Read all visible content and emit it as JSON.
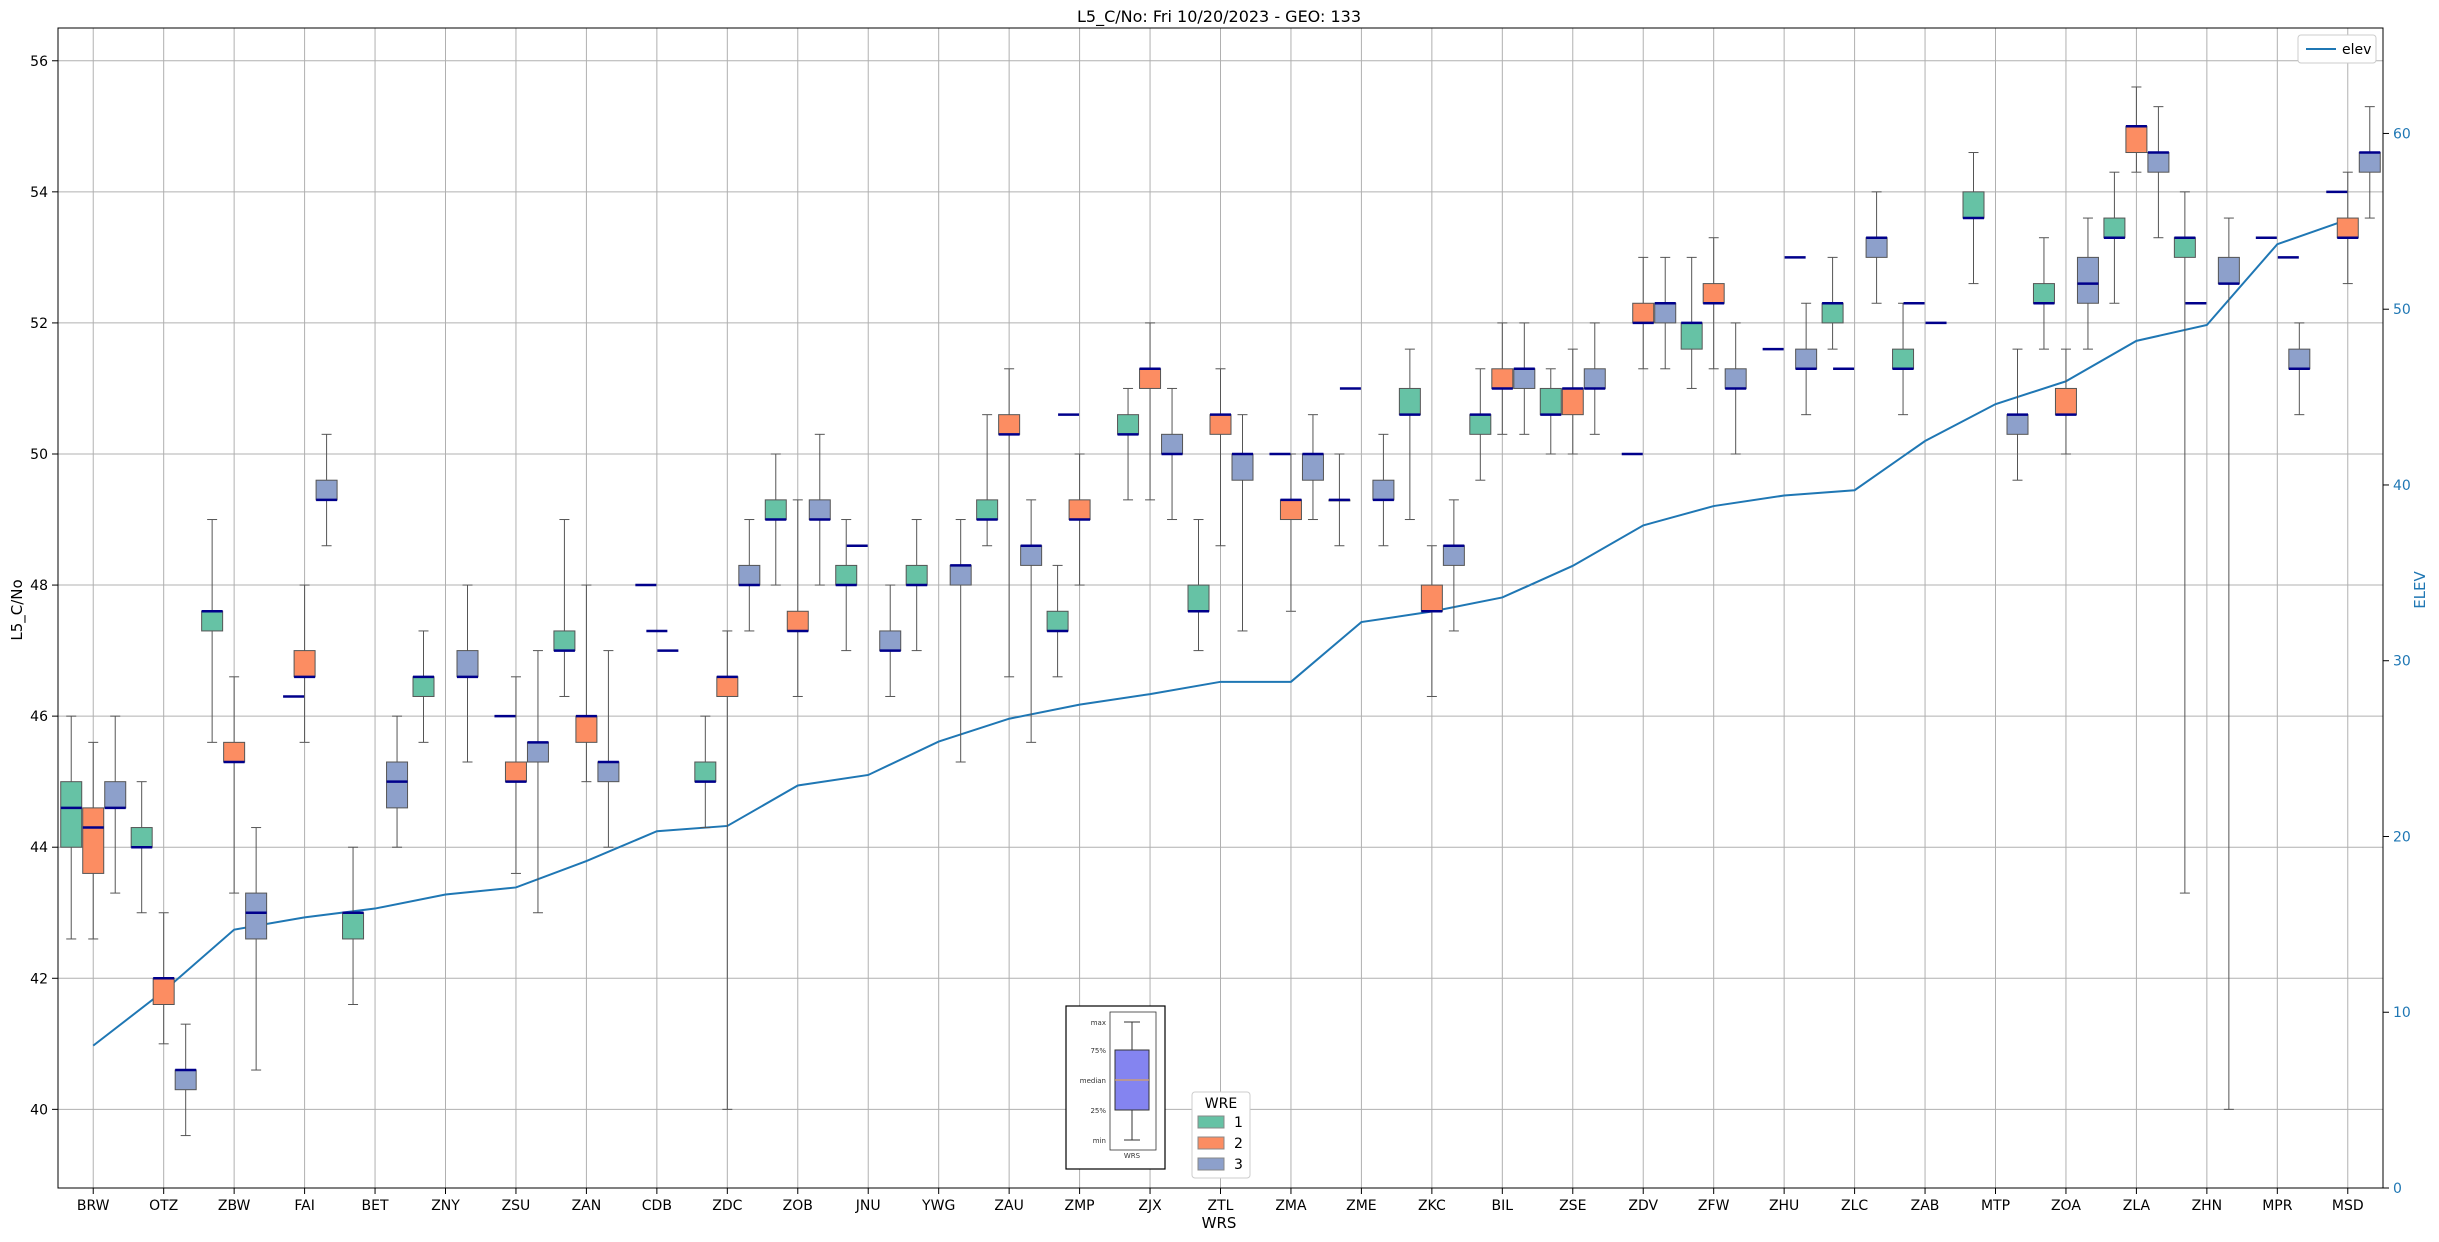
{
  "chart_data": {
    "type": "box",
    "title": "L5_C/No: Fri 10/20/2023 - GEO: 133",
    "xlabel": "WRS",
    "ylabel": "L5_C/No",
    "y2label": "ELEV",
    "ylim": [
      38.8,
      56.5
    ],
    "y2lim": [
      0,
      66
    ],
    "yticks": [
      40,
      42,
      44,
      46,
      48,
      50,
      52,
      54,
      56
    ],
    "y2ticks": [
      0,
      10,
      20,
      30,
      40,
      50,
      60
    ],
    "grid": true,
    "categories": [
      "BRW",
      "OTZ",
      "ZBW",
      "FAI",
      "BET",
      "ZNY",
      "ZSU",
      "ZAN",
      "CDB",
      "ZDC",
      "ZOB",
      "JNU",
      "YWG",
      "ZAU",
      "ZMP",
      "ZJX",
      "ZTL",
      "ZMA",
      "ZME",
      "ZKC",
      "BIL",
      "ZSE",
      "ZDV",
      "ZFW",
      "ZHU",
      "ZLC",
      "ZAB",
      "MTP",
      "ZOA",
      "ZLA",
      "ZHN",
      "MPR",
      "MSD"
    ],
    "colors": {
      "1": "#66c2a5",
      "2": "#fc8d62",
      "3": "#8da0cb",
      "median": "#00008b",
      "elev": "#1f77b4"
    },
    "series": [
      {
        "name": "1",
        "boxes": [
          {
            "i": 0,
            "min": 42.6,
            "q1": 44.0,
            "med": 44.6,
            "q3": 45.0,
            "max": 46.0
          },
          {
            "i": 1,
            "min": 43.0,
            "q1": 44.0,
            "med": 44.0,
            "q3": 44.3,
            "max": 45.0
          },
          {
            "i": 2,
            "min": 45.6,
            "q1": 47.3,
            "med": 47.6,
            "q3": 47.6,
            "max": 49.0
          },
          {
            "i": 4,
            "min": 41.6,
            "q1": 42.6,
            "med": 43.0,
            "q3": 43.0,
            "max": 44.0
          },
          {
            "i": 5,
            "min": 45.6,
            "q1": 46.3,
            "med": 46.6,
            "q3": 46.6,
            "max": 47.3
          },
          {
            "i": 7,
            "min": 46.3,
            "q1": 47.0,
            "med": 47.0,
            "q3": 47.3,
            "max": 49.0
          },
          {
            "i": 9,
            "min": 44.3,
            "q1": 45.0,
            "med": 45.0,
            "q3": 45.3,
            "max": 46.0
          },
          {
            "i": 10,
            "min": 48.0,
            "q1": 49.0,
            "med": 49.0,
            "q3": 49.3,
            "max": 50.0
          },
          {
            "i": 11,
            "min": 47.0,
            "q1": 48.0,
            "med": 48.0,
            "q3": 48.3,
            "max": 49.0
          },
          {
            "i": 12,
            "min": 47.0,
            "q1": 48.0,
            "med": 48.0,
            "q3": 48.3,
            "max": 49.0
          },
          {
            "i": 13,
            "min": 48.6,
            "q1": 49.0,
            "med": 49.0,
            "q3": 49.3,
            "max": 50.6
          },
          {
            "i": 14,
            "min": 46.6,
            "q1": 47.3,
            "med": 47.3,
            "q3": 47.6,
            "max": 48.3
          },
          {
            "i": 15,
            "min": 49.3,
            "q1": 50.3,
            "med": 50.3,
            "q3": 50.6,
            "max": 51.0
          },
          {
            "i": 16,
            "min": 47.0,
            "q1": 47.6,
            "med": 47.6,
            "q3": 48.0,
            "max": 49.0
          },
          {
            "i": 18,
            "min": 48.6,
            "q1": 49.3,
            "med": 49.3,
            "q3": 49.3,
            "max": 50.0
          },
          {
            "i": 19,
            "min": 49.0,
            "q1": 50.6,
            "med": 50.6,
            "q3": 51.0,
            "max": 51.6
          },
          {
            "i": 20,
            "min": 49.6,
            "q1": 50.3,
            "med": 50.6,
            "q3": 50.6,
            "max": 51.3
          },
          {
            "i": 21,
            "min": 50.0,
            "q1": 50.6,
            "med": 50.6,
            "q3": 51.0,
            "max": 51.3
          },
          {
            "i": 23,
            "min": 51.0,
            "q1": 51.6,
            "med": 52.0,
            "q3": 52.0,
            "max": 53.0
          },
          {
            "i": 25,
            "min": 51.6,
            "q1": 52.0,
            "med": 52.3,
            "q3": 52.3,
            "max": 53.0
          },
          {
            "i": 26,
            "min": 50.6,
            "q1": 51.3,
            "med": 51.3,
            "q3": 51.6,
            "max": 52.3
          },
          {
            "i": 27,
            "min": 52.6,
            "q1": 53.6,
            "med": 53.6,
            "q3": 54.0,
            "max": 54.6
          },
          {
            "i": 28,
            "min": 51.6,
            "q1": 52.3,
            "med": 52.3,
            "q3": 52.6,
            "max": 53.3
          },
          {
            "i": 29,
            "min": 52.3,
            "q1": 53.3,
            "med": 53.3,
            "q3": 53.6,
            "max": 54.3
          },
          {
            "i": 30,
            "min": 43.3,
            "q1": 53.0,
            "med": 53.3,
            "q3": 53.3,
            "max": 54.0
          }
        ]
      },
      {
        "name": "2",
        "boxes": [
          {
            "i": 0,
            "min": 42.6,
            "q1": 43.6,
            "med": 44.3,
            "q3": 44.6,
            "max": 45.6
          },
          {
            "i": 1,
            "min": 41.0,
            "q1": 41.6,
            "med": 42.0,
            "q3": 42.0,
            "max": 43.0
          },
          {
            "i": 2,
            "min": 43.3,
            "q1": 45.3,
            "med": 45.3,
            "q3": 45.6,
            "max": 46.6
          },
          {
            "i": 3,
            "min": 45.6,
            "q1": 46.6,
            "med": 46.6,
            "q3": 47.0,
            "max": 48.0
          },
          {
            "i": 6,
            "min": 43.6,
            "q1": 45.0,
            "med": 45.0,
            "q3": 45.3,
            "max": 46.6
          },
          {
            "i": 7,
            "min": 45.0,
            "q1": 45.6,
            "med": 46.0,
            "q3": 46.0,
            "max": 48.0
          },
          {
            "i": 9,
            "min": 40.0,
            "q1": 46.3,
            "med": 46.6,
            "q3": 46.6,
            "max": 47.3
          },
          {
            "i": 10,
            "min": 46.3,
            "q1": 47.3,
            "med": 47.3,
            "q3": 47.6,
            "max": 49.3
          },
          {
            "i": 13,
            "min": 46.6,
            "q1": 50.3,
            "med": 50.3,
            "q3": 50.6,
            "max": 51.3
          },
          {
            "i": 14,
            "min": 48.0,
            "q1": 49.0,
            "med": 49.0,
            "q3": 49.3,
            "max": 50.0
          },
          {
            "i": 15,
            "min": 49.3,
            "q1": 51.0,
            "med": 51.3,
            "q3": 51.3,
            "max": 52.0
          },
          {
            "i": 16,
            "min": 48.6,
            "q1": 50.3,
            "med": 50.6,
            "q3": 50.6,
            "max": 51.3
          },
          {
            "i": 17,
            "min": 47.6,
            "q1": 49.0,
            "med": 49.3,
            "q3": 49.3,
            "max": 50.0
          },
          {
            "i": 19,
            "min": 46.3,
            "q1": 47.6,
            "med": 47.6,
            "q3": 48.0,
            "max": 48.6
          },
          {
            "i": 20,
            "min": 50.3,
            "q1": 51.0,
            "med": 51.0,
            "q3": 51.3,
            "max": 52.0
          },
          {
            "i": 21,
            "min": 50.0,
            "q1": 50.6,
            "med": 51.0,
            "q3": 51.0,
            "max": 51.6
          },
          {
            "i": 22,
            "min": 51.3,
            "q1": 52.0,
            "med": 52.0,
            "q3": 52.3,
            "max": 53.0
          },
          {
            "i": 23,
            "min": 51.3,
            "q1": 52.3,
            "med": 52.3,
            "q3": 52.6,
            "max": 53.3
          },
          {
            "i": 28,
            "min": 50.0,
            "q1": 50.6,
            "med": 50.6,
            "q3": 51.0,
            "max": 51.6
          },
          {
            "i": 29,
            "min": 54.3,
            "q1": 54.6,
            "med": 55.0,
            "q3": 55.0,
            "max": 55.6
          },
          {
            "i": 32,
            "min": 52.6,
            "q1": 53.3,
            "med": 53.3,
            "q3": 53.6,
            "max": 54.3
          }
        ]
      },
      {
        "name": "3",
        "boxes": [
          {
            "i": 0,
            "min": 43.3,
            "q1": 44.6,
            "med": 44.6,
            "q3": 45.0,
            "max": 46.0
          },
          {
            "i": 1,
            "min": 39.6,
            "q1": 40.3,
            "med": 40.6,
            "q3": 40.6,
            "max": 41.3
          },
          {
            "i": 2,
            "min": 40.6,
            "q1": 42.6,
            "med": 43.0,
            "q3": 43.3,
            "max": 44.3
          },
          {
            "i": 3,
            "min": 48.6,
            "q1": 49.3,
            "med": 49.3,
            "q3": 49.6,
            "max": 50.3
          },
          {
            "i": 4,
            "min": 44.0,
            "q1": 44.6,
            "med": 45.0,
            "q3": 45.3,
            "max": 46.0
          },
          {
            "i": 5,
            "min": 45.3,
            "q1": 46.6,
            "med": 46.6,
            "q3": 47.0,
            "max": 48.0
          },
          {
            "i": 6,
            "min": 43.0,
            "q1": 45.3,
            "med": 45.6,
            "q3": 45.6,
            "max": 47.0
          },
          {
            "i": 7,
            "min": 44.0,
            "q1": 45.0,
            "med": 45.3,
            "q3": 45.3,
            "max": 47.0
          },
          {
            "i": 9,
            "min": 47.3,
            "q1": 48.0,
            "med": 48.0,
            "q3": 48.3,
            "max": 49.0
          },
          {
            "i": 10,
            "min": 48.0,
            "q1": 49.0,
            "med": 49.0,
            "q3": 49.3,
            "max": 50.3
          },
          {
            "i": 11,
            "min": 46.3,
            "q1": 47.0,
            "med": 47.0,
            "q3": 47.3,
            "max": 48.0
          },
          {
            "i": 12,
            "min": 45.3,
            "q1": 48.0,
            "med": 48.3,
            "q3": 48.3,
            "max": 49.0
          },
          {
            "i": 13,
            "min": 45.6,
            "q1": 48.3,
            "med": 48.6,
            "q3": 48.6,
            "max": 49.3
          },
          {
            "i": 15,
            "min": 49.0,
            "q1": 50.0,
            "med": 50.0,
            "q3": 50.3,
            "max": 51.0
          },
          {
            "i": 16,
            "min": 47.3,
            "q1": 49.6,
            "med": 50.0,
            "q3": 50.0,
            "max": 50.6
          },
          {
            "i": 17,
            "min": 49.0,
            "q1": 49.6,
            "med": 50.0,
            "q3": 50.0,
            "max": 50.6
          },
          {
            "i": 18,
            "min": 48.6,
            "q1": 49.3,
            "med": 49.3,
            "q3": 49.6,
            "max": 50.3
          },
          {
            "i": 19,
            "min": 47.3,
            "q1": 48.3,
            "med": 48.6,
            "q3": 48.6,
            "max": 49.3
          },
          {
            "i": 20,
            "min": 50.3,
            "q1": 51.0,
            "med": 51.3,
            "q3": 51.3,
            "max": 52.0
          },
          {
            "i": 21,
            "min": 50.3,
            "q1": 51.0,
            "med": 51.0,
            "q3": 51.3,
            "max": 52.0
          },
          {
            "i": 22,
            "min": 51.3,
            "q1": 52.0,
            "med": 52.3,
            "q3": 52.3,
            "max": 53.0
          },
          {
            "i": 23,
            "min": 50.0,
            "q1": 51.0,
            "med": 51.0,
            "q3": 51.3,
            "max": 52.0
          },
          {
            "i": 24,
            "min": 50.6,
            "q1": 51.3,
            "med": 51.3,
            "q3": 51.6,
            "max": 52.3
          },
          {
            "i": 25,
            "min": 52.3,
            "q1": 53.0,
            "med": 53.3,
            "q3": 53.3,
            "max": 54.0
          },
          {
            "i": 27,
            "min": 49.6,
            "q1": 50.3,
            "med": 50.6,
            "q3": 50.6,
            "max": 51.6
          },
          {
            "i": 28,
            "min": 51.6,
            "q1": 52.3,
            "med": 52.6,
            "q3": 53.0,
            "max": 53.6
          },
          {
            "i": 29,
            "min": 53.3,
            "q1": 54.3,
            "med": 54.6,
            "q3": 54.6,
            "max": 55.3
          },
          {
            "i": 30,
            "min": 40.0,
            "q1": 52.6,
            "med": 52.6,
            "q3": 53.0,
            "max": 53.6
          },
          {
            "i": 31,
            "min": 50.6,
            "q1": 51.3,
            "med": 51.3,
            "q3": 51.6,
            "max": 52.0
          },
          {
            "i": 32,
            "min": 53.6,
            "q1": 54.3,
            "med": 54.6,
            "q3": 54.6,
            "max": 55.3
          }
        ]
      }
    ],
    "medians_only": [
      {
        "i": 3,
        "value": 46.3
      },
      {
        "i": 6,
        "value": 46.0
      },
      {
        "i": 8,
        "value": 48.0
      },
      {
        "i": 8,
        "value": 47.0
      },
      {
        "i": 8,
        "value": 47.3
      },
      {
        "i": 11,
        "value": 48.6
      },
      {
        "i": 14,
        "value": 50.6
      },
      {
        "i": 17,
        "value": 50.0
      },
      {
        "i": 18,
        "value": 51.0
      },
      {
        "i": 22,
        "value": 50.0
      },
      {
        "i": 24,
        "value": 51.6
      },
      {
        "i": 24,
        "value": 53.0
      },
      {
        "i": 25,
        "value": 51.3
      },
      {
        "i": 26,
        "value": 52.3
      },
      {
        "i": 26,
        "value": 52.0
      },
      {
        "i": 30,
        "value": 52.3
      },
      {
        "i": 31,
        "value": 53.3
      },
      {
        "i": 31,
        "value": 53.0
      },
      {
        "i": 32,
        "value": 54.0
      }
    ],
    "elev": {
      "name": "elev",
      "values": [
        8.1,
        11.2,
        14.7,
        15.4,
        15.9,
        16.7,
        17.1,
        18.6,
        20.3,
        20.6,
        22.9,
        23.5,
        25.4,
        26.7,
        27.5,
        28.1,
        28.8,
        28.8,
        32.2,
        32.8,
        33.6,
        35.4,
        37.7,
        38.8,
        39.4,
        39.7,
        42.5,
        44.6,
        45.9,
        48.2,
        49.1,
        53.7,
        55.1
      ]
    },
    "legends": {
      "wre": {
        "title": "WRE",
        "entries": [
          "1",
          "2",
          "3"
        ],
        "placement": "bottom-center"
      },
      "elev": {
        "entries": [
          "elev"
        ],
        "placement": "top-right"
      },
      "key": {
        "labels": [
          "max",
          "75%",
          "median",
          "25%",
          "min"
        ],
        "xlabel": "WRS"
      }
    }
  }
}
